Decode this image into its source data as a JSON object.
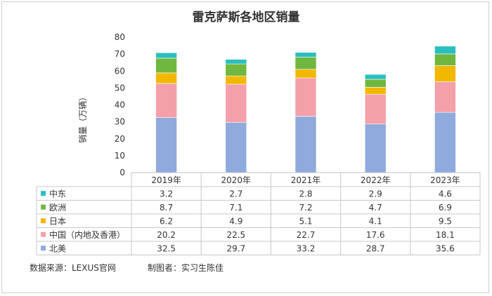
{
  "chart_data": {
    "type": "bar",
    "stacked": true,
    "title": "雷克萨斯各地区销量",
    "ylabel": "销量（万辆）",
    "ylim": [
      0,
      80
    ],
    "yticks": [
      "0",
      "10",
      "20",
      "30",
      "40",
      "50",
      "60",
      "70",
      "80"
    ],
    "categories": [
      "2019年",
      "2020年",
      "2021年",
      "2022年",
      "2023年"
    ],
    "series": [
      {
        "name": "北美",
        "color": "#8faadc",
        "values": [
          32.5,
          29.7,
          33.2,
          28.7,
          35.6
        ]
      },
      {
        "name": "中国（内地及香港）",
        "color": "#f4a0a8",
        "values": [
          20.2,
          22.5,
          22.7,
          17.6,
          18.1
        ]
      },
      {
        "name": "日本",
        "color": "#f2b800",
        "values": [
          6.2,
          4.9,
          5.1,
          4.1,
          9.5
        ]
      },
      {
        "name": "欧洲",
        "color": "#70b73f",
        "values": [
          8.7,
          7.1,
          7.2,
          4.7,
          6.9
        ]
      },
      {
        "name": "中东",
        "color": "#2bbfbf",
        "values": [
          3.2,
          2.7,
          2.8,
          2.9,
          4.6
        ]
      }
    ],
    "table_rows": [
      {
        "name": "中东",
        "color": "#2bbfbf",
        "cells": [
          "3.2",
          "2.7",
          "2.8",
          "2.9",
          "4.6"
        ]
      },
      {
        "name": "欧洲",
        "color": "#70b73f",
        "cells": [
          "8.7",
          "7.1",
          "7.2",
          "4.7",
          "6.9"
        ]
      },
      {
        "name": "日本",
        "color": "#f2b800",
        "cells": [
          "6.2",
          "4.9",
          "5.1",
          "4.1",
          "9.5"
        ]
      },
      {
        "name": "中国（内地及香港）",
        "color": "#f4a0a8",
        "cells": [
          "20.2",
          "22.5",
          "22.7",
          "17.6",
          "18.1"
        ]
      },
      {
        "name": "北美",
        "color": "#8faadc",
        "cells": [
          "32.5",
          "29.7",
          "33.2",
          "28.7",
          "35.6"
        ]
      }
    ],
    "grid": false,
    "legend": "data-table"
  },
  "footer": {
    "source": "数据来源：LEXUS官网",
    "author": "制图者：实习生陈佳"
  }
}
